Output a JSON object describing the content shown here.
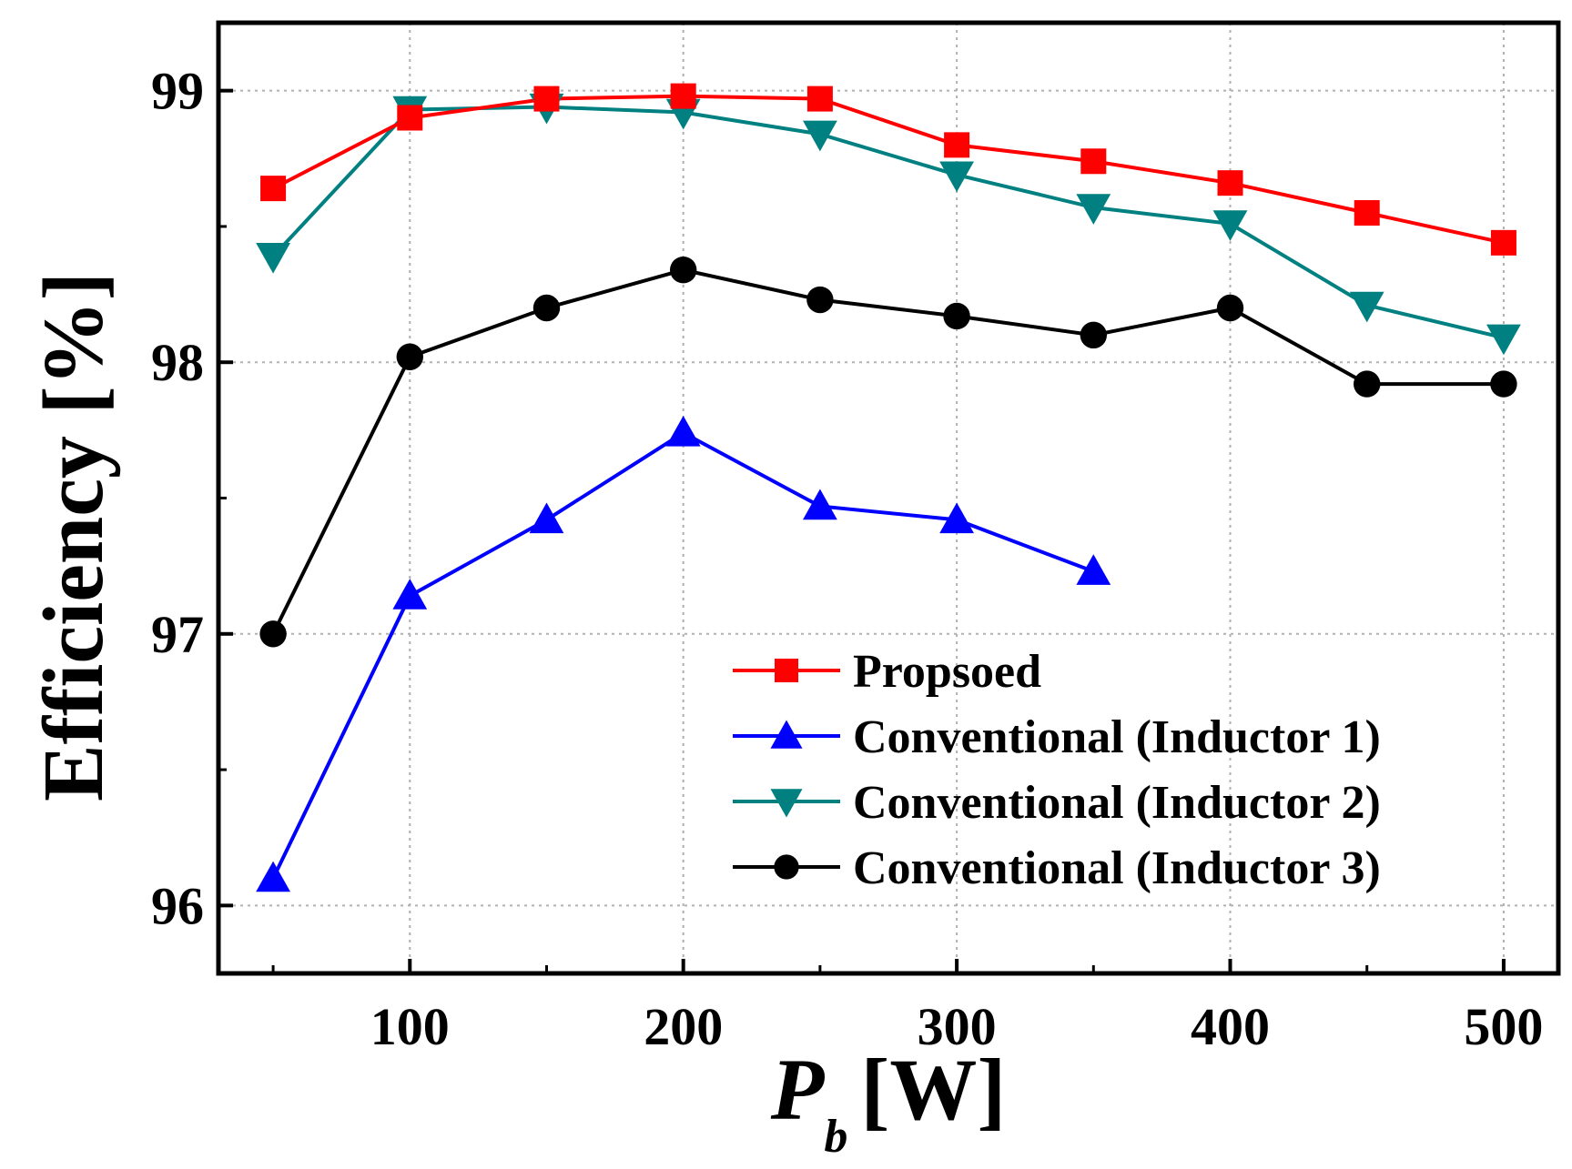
{
  "chart_data": {
    "type": "line",
    "xlabel": {
      "main": "P",
      "sub": "b",
      "unit": "[W]"
    },
    "ylabel": "Efficiency [%]",
    "xlim": [
      30,
      520
    ],
    "ylim": [
      95.75,
      99.25
    ],
    "xticks": [
      100,
      200,
      300,
      400,
      500
    ],
    "xtick_labels": [
      "100",
      "200",
      "300",
      "400",
      "500"
    ],
    "yticks": [
      96,
      97,
      98,
      99
    ],
    "ytick_labels": [
      "96",
      "97",
      "98",
      "99"
    ],
    "grid": true,
    "legend_position": "bottom-right",
    "series": [
      {
        "name": "Propsoed",
        "color": "#ff0000",
        "marker": "square",
        "x": [
          50,
          100,
          150,
          200,
          250,
          300,
          350,
          400,
          450,
          500
        ],
        "y": [
          98.64,
          98.9,
          98.97,
          98.98,
          98.97,
          98.8,
          98.74,
          98.66,
          98.55,
          98.44
        ]
      },
      {
        "name": "Conventional (Inductor 1)",
        "color": "#0000ff",
        "marker": "triangle-up",
        "x": [
          50,
          100,
          150,
          200,
          250,
          300,
          350
        ],
        "y": [
          96.1,
          97.14,
          97.42,
          97.74,
          97.47,
          97.42,
          97.23
        ]
      },
      {
        "name": "Conventional (Inductor 2)",
        "color": "#008080",
        "marker": "triangle-down",
        "x": [
          50,
          100,
          150,
          200,
          250,
          300,
          350,
          400,
          450,
          500
        ],
        "y": [
          98.39,
          98.93,
          98.94,
          98.92,
          98.84,
          98.69,
          98.57,
          98.51,
          98.21,
          98.09
        ]
      },
      {
        "name": "Conventional (Inductor 3)",
        "color": "#000000",
        "marker": "circle",
        "x": [
          50,
          100,
          150,
          200,
          250,
          300,
          350,
          400,
          450,
          500
        ],
        "y": [
          97.0,
          98.02,
          98.2,
          98.34,
          98.23,
          98.17,
          98.1,
          98.2,
          97.92,
          97.92
        ]
      }
    ]
  }
}
